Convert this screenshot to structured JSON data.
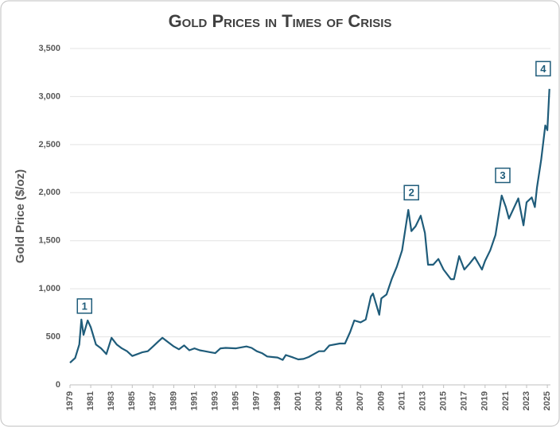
{
  "chart_data": {
    "type": "line",
    "title": "Gold Prices in Times of Crisis",
    "y_label": "Gold Price ($/oz)",
    "color": "#1f5c7a",
    "grid": true,
    "xlim": [
      1979,
      2025.3
    ],
    "xticks": [
      1979,
      1981,
      1983,
      1985,
      1987,
      1989,
      1991,
      1993,
      1995,
      1997,
      1999,
      2001,
      2003,
      2005,
      2007,
      2009,
      2011,
      2013,
      2015,
      2017,
      2019,
      2021,
      2023,
      2025
    ],
    "ylim": [
      0,
      3500
    ],
    "yticks": [
      0,
      500,
      {
        "value": 1000,
        "label": "1,000"
      },
      {
        "value": 1500,
        "label": "1,500"
      },
      {
        "value": 2000,
        "label": "2,000"
      },
      {
        "value": 2500,
        "label": "2,500"
      },
      {
        "value": 3000,
        "label": "3,000"
      },
      {
        "value": 3500,
        "label": "3,500"
      }
    ],
    "x": [
      1979.0,
      1979.5,
      1979.9,
      1980.1,
      1980.3,
      1980.7,
      1981.0,
      1981.5,
      1982.0,
      1982.5,
      1983.0,
      1983.5,
      1984.0,
      1984.5,
      1985.0,
      1985.5,
      1986.0,
      1986.5,
      1987.0,
      1987.5,
      1987.9,
      1988.5,
      1989.0,
      1989.5,
      1990.0,
      1990.5,
      1991.0,
      1991.5,
      1992.0,
      1992.5,
      1993.0,
      1993.5,
      1994.0,
      1995.0,
      1996.0,
      1996.5,
      1997.0,
      1997.5,
      1998.0,
      1998.5,
      1999.0,
      1999.5,
      1999.8,
      2000.5,
      2001.0,
      2001.5,
      2002.0,
      2002.5,
      2003.0,
      2003.5,
      2004.0,
      2005.0,
      2005.5,
      2006.0,
      2006.4,
      2007.0,
      2007.5,
      2008.0,
      2008.2,
      2008.8,
      2009.0,
      2009.5,
      2010.0,
      2010.5,
      2011.0,
      2011.6,
      2011.9,
      2012.3,
      2012.8,
      2013.2,
      2013.5,
      2014.0,
      2014.5,
      2015.0,
      2015.7,
      2016.0,
      2016.5,
      2017.0,
      2017.5,
      2018.0,
      2018.7,
      2019.0,
      2019.5,
      2020.0,
      2020.6,
      2021.0,
      2021.3,
      2021.6,
      2022.2,
      2022.7,
      2023.0,
      2023.5,
      2023.8,
      2024.0,
      2024.4,
      2024.8,
      2025.0,
      2025.2
    ],
    "series": [
      {
        "name": "Gold Price",
        "color": "#1f5c7a",
        "values": [
          230,
          280,
          420,
          680,
          520,
          670,
          600,
          420,
          380,
          320,
          490,
          420,
          380,
          350,
          300,
          320,
          340,
          350,
          400,
          450,
          490,
          440,
          400,
          370,
          410,
          360,
          380,
          360,
          350,
          340,
          330,
          380,
          385,
          380,
          400,
          385,
          350,
          330,
          295,
          290,
          285,
          260,
          310,
          285,
          265,
          270,
          290,
          320,
          350,
          350,
          410,
          430,
          430,
          550,
          670,
          650,
          680,
          920,
          950,
          730,
          900,
          940,
          1100,
          1230,
          1400,
          1820,
          1600,
          1650,
          1760,
          1580,
          1250,
          1250,
          1310,
          1200,
          1100,
          1100,
          1340,
          1200,
          1260,
          1330,
          1200,
          1290,
          1400,
          1560,
          1970,
          1850,
          1730,
          1800,
          1940,
          1660,
          1900,
          1950,
          1850,
          2050,
          2340,
          2700,
          2650,
          3080
        ]
      }
    ],
    "annotations": [
      {
        "text": "1",
        "x": 1980.4,
        "y": 820
      },
      {
        "text": "2",
        "x": 2011.9,
        "y": 2000
      },
      {
        "text": "3",
        "x": 2020.7,
        "y": 2180
      },
      {
        "text": "4",
        "x": 2024.6,
        "y": 3290
      }
    ]
  }
}
